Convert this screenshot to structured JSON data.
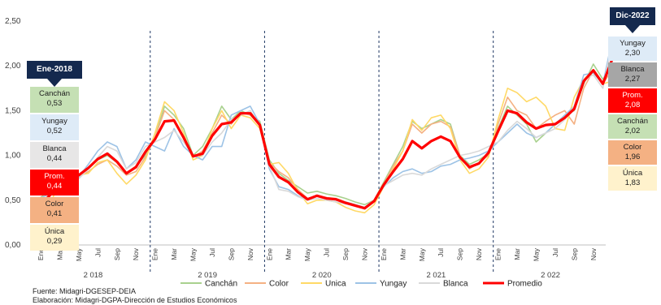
{
  "chart_data": {
    "type": "line",
    "y_ticks": [
      "0,00",
      "0,50",
      "1,00",
      "1,50",
      "2,00",
      "2,50"
    ],
    "ylim": [
      0,
      2.5
    ],
    "years": [
      "2 018",
      "2 019",
      "2 020",
      "2 021",
      "2 022"
    ],
    "month_labels": [
      "Ene",
      "Mar",
      "May",
      "Jul",
      "Sep",
      "Nov"
    ],
    "legend": [
      "Canchán",
      "Color",
      "Unica",
      "Yungay",
      "Blanca",
      "Promedio"
    ],
    "colors": {
      "Canchán": "#a9d18e",
      "Color": "#f4b183",
      "Unica": "#ffd966",
      "Yungay": "#9dc3e6",
      "Blanca": "#d9d9d9",
      "Promedio": "#ff0000"
    },
    "series": [
      {
        "name": "Canchán",
        "values": [
          0.53,
          0.62,
          0.78,
          0.8,
          0.79,
          0.85,
          0.95,
          1.0,
          0.92,
          0.8,
          0.88,
          1.0,
          1.2,
          1.55,
          1.45,
          1.3,
          1.0,
          1.1,
          1.3,
          1.55,
          1.4,
          1.5,
          1.45,
          1.38,
          0.95,
          0.8,
          0.72,
          0.65,
          0.58,
          0.6,
          0.57,
          0.55,
          0.52,
          0.48,
          0.45,
          0.5,
          0.7,
          0.9,
          1.1,
          1.38,
          1.3,
          1.35,
          1.4,
          1.35,
          1.0,
          0.9,
          0.95,
          1.02,
          1.3,
          1.55,
          1.45,
          1.35,
          1.15,
          1.25,
          1.35,
          1.45,
          1.5,
          1.8,
          2.02,
          1.85,
          2.02
        ]
      },
      {
        "name": "Color",
        "values": [
          0.41,
          0.55,
          0.75,
          0.78,
          0.76,
          0.82,
          0.9,
          0.95,
          0.88,
          0.78,
          0.82,
          0.98,
          1.2,
          1.5,
          1.4,
          1.2,
          0.98,
          1.05,
          1.25,
          1.45,
          1.35,
          1.48,
          1.45,
          1.35,
          0.92,
          0.82,
          0.75,
          0.62,
          0.52,
          0.55,
          0.53,
          0.52,
          0.48,
          0.45,
          0.4,
          0.48,
          0.68,
          0.88,
          1.05,
          1.35,
          1.25,
          1.35,
          1.38,
          1.32,
          1.0,
          0.85,
          0.92,
          1.0,
          1.35,
          1.65,
          1.5,
          1.45,
          1.3,
          1.38,
          1.45,
          1.5,
          1.35,
          1.75,
          1.95,
          1.8,
          1.96
        ]
      },
      {
        "name": "Unica",
        "values": [
          0.29,
          0.45,
          0.72,
          0.82,
          0.78,
          0.8,
          0.92,
          0.95,
          0.8,
          0.68,
          0.78,
          0.95,
          1.25,
          1.6,
          1.5,
          1.25,
          0.95,
          1.0,
          1.3,
          1.5,
          1.3,
          1.45,
          1.42,
          1.3,
          0.9,
          0.92,
          0.8,
          0.6,
          0.46,
          0.5,
          0.5,
          0.48,
          0.42,
          0.38,
          0.36,
          0.45,
          0.65,
          0.85,
          1.05,
          1.4,
          1.28,
          1.42,
          1.45,
          1.3,
          0.95,
          0.8,
          0.85,
          0.98,
          1.4,
          1.75,
          1.7,
          1.6,
          1.65,
          1.55,
          1.3,
          1.28,
          1.65,
          1.85,
          1.95,
          1.8,
          1.83
        ]
      },
      {
        "name": "Yungay",
        "values": [
          0.52,
          0.58,
          0.72,
          0.78,
          0.76,
          0.9,
          1.05,
          1.15,
          1.1,
          0.85,
          0.95,
          1.15,
          1.1,
          1.05,
          1.3,
          1.1,
          1.0,
          0.95,
          1.1,
          1.1,
          1.45,
          1.5,
          1.55,
          1.35,
          0.85,
          0.65,
          0.62,
          0.55,
          0.5,
          0.55,
          0.52,
          0.5,
          0.48,
          0.45,
          0.42,
          0.5,
          0.65,
          0.75,
          0.82,
          0.85,
          0.8,
          0.82,
          0.88,
          0.9,
          0.95,
          0.97,
          1.0,
          1.05,
          1.15,
          1.25,
          1.35,
          1.25,
          1.2,
          1.25,
          1.35,
          1.45,
          1.55,
          1.9,
          1.92,
          1.8,
          2.3
        ]
      },
      {
        "name": "Blanca",
        "values": [
          0.44,
          0.6,
          0.7,
          0.75,
          0.74,
          0.85,
          0.98,
          1.1,
          1.05,
          0.85,
          0.92,
          1.1,
          1.15,
          1.2,
          1.28,
          1.15,
          1.0,
          1.0,
          1.15,
          1.25,
          1.4,
          1.45,
          1.5,
          1.32,
          0.88,
          0.62,
          0.6,
          0.54,
          0.5,
          0.52,
          0.5,
          0.48,
          0.46,
          0.44,
          0.42,
          0.5,
          0.66,
          0.72,
          0.78,
          0.8,
          0.78,
          0.85,
          0.9,
          0.95,
          1.0,
          1.02,
          1.05,
          1.1,
          1.15,
          1.28,
          1.38,
          1.3,
          1.2,
          1.25,
          1.3,
          1.4,
          1.55,
          1.85,
          1.9,
          1.75,
          2.27
        ]
      },
      {
        "name": "Promedio",
        "values": [
          0.44,
          0.56,
          0.77,
          0.79,
          0.78,
          0.86,
          0.96,
          1.02,
          0.93,
          0.8,
          0.87,
          1.04,
          1.18,
          1.38,
          1.39,
          1.2,
          0.99,
          1.02,
          1.22,
          1.35,
          1.37,
          1.47,
          1.47,
          1.34,
          0.9,
          0.76,
          0.7,
          0.59,
          0.51,
          0.55,
          0.52,
          0.51,
          0.47,
          0.44,
          0.41,
          0.49,
          0.67,
          0.82,
          0.96,
          1.16,
          1.08,
          1.16,
          1.21,
          1.16,
          0.98,
          0.87,
          0.91,
          1.03,
          1.27,
          1.5,
          1.47,
          1.37,
          1.3,
          1.34,
          1.35,
          1.42,
          1.52,
          1.83,
          1.95,
          1.8,
          2.08
        ]
      }
    ],
    "callouts": {
      "start": {
        "header": "Ene-2018",
        "items": [
          {
            "name": "Canchán",
            "value": "0,53",
            "bg": "#c5e0b4"
          },
          {
            "name": "Yungay",
            "value": "0,52",
            "bg": "#deebf7"
          },
          {
            "name": "Blanca",
            "value": "0,44",
            "bg": "#e7e6e6"
          },
          {
            "name": "Prom.",
            "value": "0,44",
            "bg": "#ff0000",
            "fg": "#ffffff"
          },
          {
            "name": "Color",
            "value": "0,41",
            "bg": "#f4b183"
          },
          {
            "name": "Única",
            "value": "0,29",
            "bg": "#fff2cc"
          }
        ]
      },
      "end": {
        "header": "Dic-2022",
        "items": [
          {
            "name": "Yungay",
            "value": "2,30",
            "bg": "#deebf7"
          },
          {
            "name": "Blanca",
            "value": "2,27",
            "bg": "#a6a6a6"
          },
          {
            "name": "Prom.",
            "value": "2,08",
            "bg": "#ff0000",
            "fg": "#ffffff"
          },
          {
            "name": "Canchán",
            "value": "2,02",
            "bg": "#c5e0b4"
          },
          {
            "name": "Color",
            "value": "1,96",
            "bg": "#f4b183"
          },
          {
            "name": "Única",
            "value": "1,83",
            "bg": "#fff2cc"
          }
        ]
      }
    }
  },
  "footer": {
    "source": "Fuente: Midagri-DGESEP-DEIA",
    "elaboration": "Elaboración: Midagri-DGPA-Dirección de Estudios Económicos"
  }
}
